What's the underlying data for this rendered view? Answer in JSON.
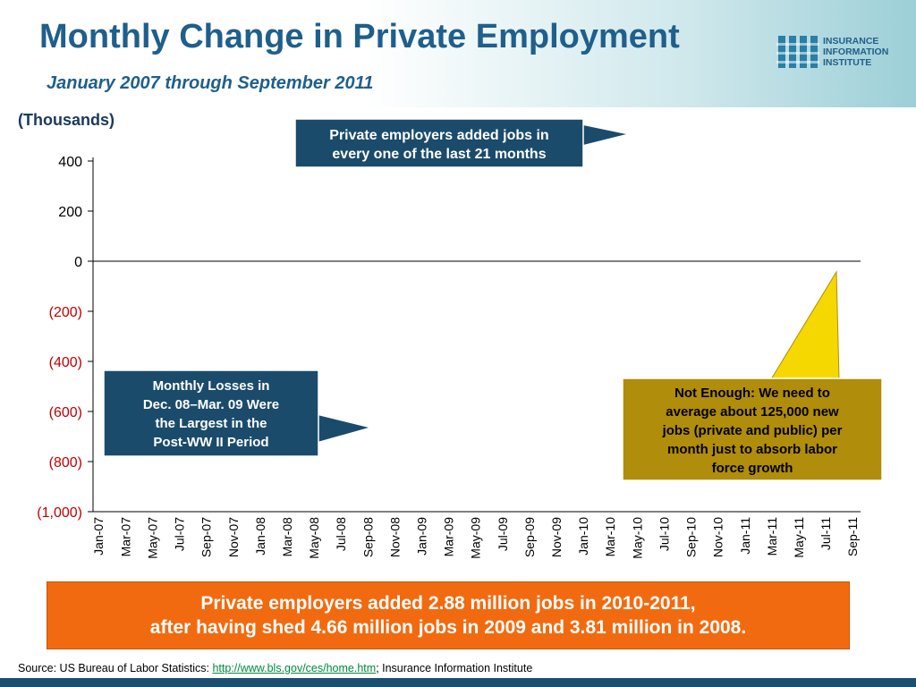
{
  "header": {
    "title": "Monthly Change in Private Employment",
    "subtitle": "January 2007 through September 2011"
  },
  "logo": {
    "lines": [
      "INSURANCE",
      "INFORMATION",
      "INSTITUTE"
    ]
  },
  "units_label": "(Thousands)",
  "callouts": {
    "top": {
      "line1": "Private employers added jobs in",
      "line2": "every one of the last 21 months"
    },
    "left": {
      "lines": [
        "Monthly Losses in",
        "Dec. 08–Mar. 09 Were",
        "the Largest in the",
        "Post-WW II Period"
      ]
    },
    "right": {
      "lines": [
        "Not Enough: We need to",
        "average about 125,000 new",
        "jobs (private and public) per",
        "month just to absorb labor",
        "force growth"
      ]
    }
  },
  "footer": {
    "line1": "Private employers added 2.88 million jobs in 2010-2011,",
    "line2": "after having shed 4.66 million jobs in 2009 and 3.81 million in 2008."
  },
  "source": {
    "prefix": "Source: US Bureau of Labor Statistics: ",
    "link": "http://www.bls.gov/ces/home.htm",
    "suffix": "; Insurance Information Institute"
  },
  "colors": {
    "bar": "#1f5f8b",
    "title": "#1f5f8b",
    "negative_tick": "#c00000",
    "callout_dark": "#1b4b6b",
    "callout_gold": "#b08d0a",
    "footer_orange": "#f26a10"
  },
  "chart_data": {
    "type": "bar",
    "ylim": [
      -1000,
      400
    ],
    "yticks": [
      400,
      200,
      0,
      -200,
      -400,
      -600,
      -800,
      -1000
    ],
    "ytick_labels": [
      "400",
      "200",
      "0",
      "(200)",
      "(400)",
      "(600)",
      "(800)",
      "(1,000)"
    ],
    "x_tick_labels": [
      "Jan-07",
      "Mar-07",
      "May-07",
      "Jul-07",
      "Sep-07",
      "Nov-07",
      "Jan-08",
      "Mar-08",
      "May-08",
      "Jul-08",
      "Sep-08",
      "Nov-08",
      "Jan-09",
      "Mar-09",
      "May-09",
      "Jul-09",
      "Sep-09",
      "Nov-09",
      "Jan-10",
      "Mar-10",
      "May-10",
      "Jul-10",
      "Sep-10",
      "Nov-10",
      "Jan-11",
      "Mar-11",
      "May-11",
      "Jul-11",
      "Sep-11"
    ],
    "grid": false
  }
}
